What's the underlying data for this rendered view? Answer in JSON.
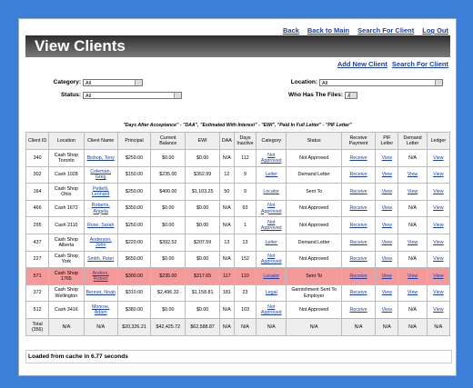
{
  "nav": {
    "links": [
      "Back",
      "Back to Main",
      "Search For Client",
      "Log Out"
    ]
  },
  "header": {
    "title": "View Clients"
  },
  "actions": [
    "Add New Client",
    "Search For Client"
  ],
  "filters": [
    {
      "label": "Category:",
      "value": "All"
    },
    {
      "label": "Location:",
      "value": "All"
    },
    {
      "label": "Status:",
      "value": "All"
    },
    {
      "label": "Who Has The Files:",
      "value": "All"
    }
  ],
  "note": "\"Days After Acceptance\" - \"DAA\", \"Estimated With Interest\" - \"EWI\", \"Paid In Full Letter\" - \"PIF Letter\"",
  "table": {
    "columns": [
      "Client ID",
      "Location",
      "Client Name",
      "Principal",
      "Current Balance",
      "EWI",
      "DAA",
      "Days Inactive",
      "Category",
      "Status",
      "Receive Payment",
      "PIF Letter",
      "Demand Letter",
      "Ledger"
    ],
    "rows": [
      [
        "340",
        "Cash Shop Toronto",
        "Bishop, Tony",
        "$250.00",
        "$0.00",
        "$0.00",
        "N/A",
        "112",
        "Not Approved",
        "Not Approved",
        "Receive",
        "View",
        "N/A",
        "View"
      ],
      [
        "302",
        "Cash 1028",
        "Coleman, Greg",
        "$150.00",
        "$235.00",
        "$352.99",
        "12",
        "9",
        "Letter",
        "Demand Letter",
        "Receive",
        "View",
        "View",
        "View"
      ],
      [
        "164",
        "Cash Shop Ohio",
        "Pettelli, Leonard",
        "$250.00",
        "$400.00",
        "$1,103.25",
        "50",
        "9",
        "Locator",
        "Sent To",
        "Receive",
        "View",
        "View",
        "View"
      ],
      [
        "466",
        "Cash 1672",
        "Roberts, Angela",
        "$350.00",
        "$0.00",
        "$0.00",
        "N/A",
        "93",
        "Not Approved",
        "Not Approved",
        "Receive",
        "View",
        "N/A",
        "View"
      ],
      [
        "295",
        "Cash 2110",
        "Rose, Sarah",
        "$250.00",
        "$0.00",
        "$0.00",
        "N/A",
        "1",
        "Not Approved",
        "Not Approved",
        "Receive",
        "View",
        "N/A",
        "View"
      ],
      [
        "437",
        "Cash Shop Alberta",
        "Anderson, John",
        "$220.00",
        "$392.52",
        "$207.59",
        "13",
        "13",
        "Letter",
        "Demand Letter",
        "Receive",
        "View",
        "View",
        "View"
      ],
      [
        "227",
        "Cash Shop York",
        "Smith, Peter",
        "$650.00",
        "$0.00",
        "$0.00",
        "N/A",
        "152",
        "Not Approved",
        "Not Approved",
        "Receive",
        "View",
        "N/A",
        "View"
      ],
      [
        "571",
        "Cash Shop 1765",
        "Anders, Robert",
        "$300.00",
        "$235.00",
        "$317.65",
        "117",
        "110",
        "Locator",
        "Sent To",
        "Receive",
        "View",
        "View",
        "View"
      ],
      [
        "372",
        "Cash Shop Wellington",
        "Bennet, Noah",
        "$310.00",
        "$2,496.33",
        "$1,158.81",
        "181",
        "23",
        "Legal",
        "Garnishment Sent To Employer",
        "Receive",
        "View",
        "View",
        "View"
      ],
      [
        "512",
        "Cash 3416",
        "Monroe, Adam",
        "$380.00",
        "$0.00",
        "$0.00",
        "N/A",
        "103",
        "Not Approved",
        "Not Approved",
        "Receive",
        "View",
        "N/A",
        "View"
      ],
      [
        "Total (356)",
        "N/A",
        "N/A",
        "$20,326.21",
        "$42,425.72",
        "$62,588.87",
        "N/A",
        "N/A",
        "N/A",
        "N/A",
        "N/A",
        "N/A",
        "N/A",
        "N/A"
      ]
    ]
  },
  "footer": "Loaded from cache in 6.77 seconds"
}
